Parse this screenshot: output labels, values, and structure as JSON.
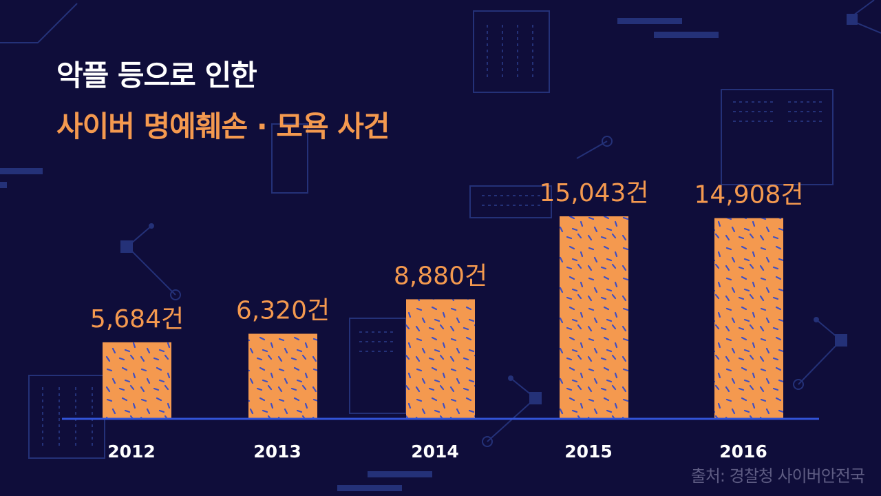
{
  "colors": {
    "background": "#0f0d3a",
    "bar": "#f4994f",
    "bar_pattern": "#3d4fc4",
    "axis": "#3253d6",
    "title": "#ffffff",
    "highlight": "#f4994f",
    "source": "#5e5c83",
    "decoration": "#2a3a8f"
  },
  "header": {
    "title_line1": "악플 등으로 인한",
    "title_line2": "사이버 명예훼손 · 모욕 사건"
  },
  "footer": {
    "source": "출처: 경찰청 사이버안전국"
  },
  "chart_data": {
    "type": "bar",
    "categories": [
      "2012",
      "2013",
      "2014",
      "2015",
      "2016"
    ],
    "values": [
      5684,
      6320,
      8880,
      15043,
      14908
    ],
    "value_labels": [
      "5,684건",
      "6,320건",
      "8,880건",
      "15,043건",
      "14,908건"
    ],
    "title": "",
    "xlabel": "",
    "ylabel": "",
    "grid": false,
    "legend": "none"
  }
}
